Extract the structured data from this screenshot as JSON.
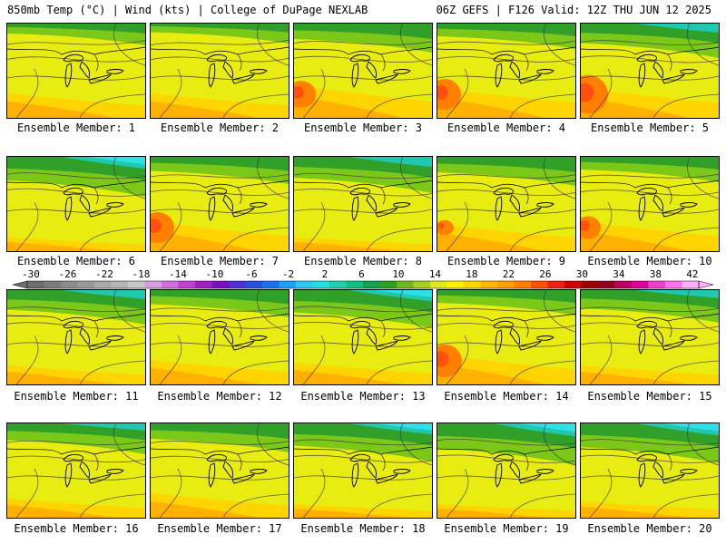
{
  "header": {
    "left": "850mb Temp (°C) | Wind (kts) | College of DuPage NEXLAB",
    "right": "06Z GEFS | F126 Valid: 12Z THU JUN 12 2025"
  },
  "panels": [
    {
      "label": "Ensemble Member: 1",
      "warmth": 0.45,
      "cool": 0.1,
      "hot": 0.0
    },
    {
      "label": "Ensemble Member: 2",
      "warmth": 0.45,
      "cool": 0.05,
      "hot": 0.0
    },
    {
      "label": "Ensemble Member: 3",
      "warmth": 0.6,
      "cool": 0.3,
      "hot": 0.4
    },
    {
      "label": "Ensemble Member: 4",
      "warmth": 0.55,
      "cool": 0.2,
      "hot": 0.5
    },
    {
      "label": "Ensemble Member: 5",
      "warmth": 0.55,
      "cool": 0.45,
      "hot": 0.7
    },
    {
      "label": "Ensemble Member: 6",
      "warmth": 0.25,
      "cool": 0.6,
      "hot": 0.0
    },
    {
      "label": "Ensemble Member: 7",
      "warmth": 0.55,
      "cool": 0.25,
      "hot": 0.5
    },
    {
      "label": "Ensemble Member: 8",
      "warmth": 0.25,
      "cool": 0.5,
      "hot": 0.0
    },
    {
      "label": "Ensemble Member: 9",
      "warmth": 0.5,
      "cool": 0.3,
      "hot": 0.1
    },
    {
      "label": "Ensemble Member: 10",
      "warmth": 0.55,
      "cool": 0.2,
      "hot": 0.3
    },
    {
      "label": "Ensemble Member: 11",
      "warmth": 0.35,
      "cool": 0.45,
      "hot": 0.0
    },
    {
      "label": "Ensemble Member: 12",
      "warmth": 0.45,
      "cool": 0.25,
      "hot": 0.0
    },
    {
      "label": "Ensemble Member: 13",
      "warmth": 0.4,
      "cool": 0.55,
      "hot": 0.0
    },
    {
      "label": "Ensemble Member: 14",
      "warmth": 0.55,
      "cool": 0.2,
      "hot": 0.55
    },
    {
      "label": "Ensemble Member: 15",
      "warmth": 0.35,
      "cool": 0.4,
      "hot": 0.0
    },
    {
      "label": "Ensemble Member: 16",
      "warmth": 0.35,
      "cool": 0.35,
      "hot": 0.0
    },
    {
      "label": "Ensemble Member: 17",
      "warmth": 0.45,
      "cool": 0.3,
      "hot": 0.0
    },
    {
      "label": "Ensemble Member: 18",
      "warmth": 0.25,
      "cool": 0.55,
      "hot": 0.0
    },
    {
      "label": "Ensemble Member: 19",
      "warmth": 0.25,
      "cool": 0.65,
      "hot": 0.0
    },
    {
      "label": "Ensemble Member: 20",
      "warmth": 0.3,
      "cool": 0.6,
      "hot": 0.0
    }
  ],
  "colorbar": {
    "labels": [
      "-30",
      "-26",
      "-22",
      "-18",
      "-14",
      "-10",
      "-6",
      "-2",
      "2",
      "6",
      "10",
      "14",
      "18",
      "22",
      "26",
      "30",
      "34",
      "38",
      "42"
    ],
    "colors": [
      "#6e6e6e",
      "#7d7d7d",
      "#8c8c8c",
      "#9a9a9a",
      "#a9a9a9",
      "#b6b6b6",
      "#c8c8c8",
      "#d8a0e0",
      "#d070e0",
      "#c040d0",
      "#a020c0",
      "#7a10c0",
      "#5030d0",
      "#2850e0",
      "#1c70f0",
      "#1ea0f8",
      "#30c8f8",
      "#20e0e0",
      "#20d0b0",
      "#10c080",
      "#18a050",
      "#30a020",
      "#70b820",
      "#a8d020",
      "#e0e820",
      "#fff000",
      "#ffd800",
      "#ffb800",
      "#ffa000",
      "#ff8000",
      "#ff5000",
      "#f02010",
      "#d00000",
      "#a00000",
      "#900020",
      "#c00060",
      "#e000a0",
      "#f040d0",
      "#ff70f0",
      "#ffb0ff"
    ]
  }
}
